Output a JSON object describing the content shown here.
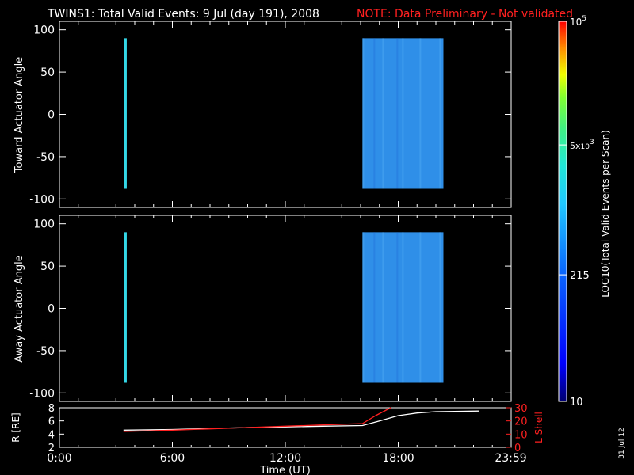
{
  "header": {
    "title": "TWINS1: Total Valid Events:  9 Jul (day 191), 2008",
    "note": "NOTE: Data Preliminary - Not validated",
    "note_color": "#ff2020"
  },
  "footer": {
    "xlabel": "Time (UT)",
    "date_stamp": "31 Jul 12"
  },
  "colorbar": {
    "title": "LOG10(Total Valid Events per Scan)",
    "tick_labels": [
      "10",
      "215",
      "5x10^3",
      "10^5"
    ],
    "tick_values": [
      10,
      215,
      5000,
      100000
    ],
    "range": [
      10,
      100000
    ],
    "scale": "log"
  },
  "chart_data": [
    {
      "type": "heatmap",
      "title": "TWINS1: Total Valid Events:  9 Jul (day 191), 2008",
      "ylabel": "Toward Actuator Angle",
      "xlabel": "",
      "xlim": [
        0,
        24
      ],
      "ylim": [
        -110,
        110
      ],
      "yticks": [
        100,
        50,
        0,
        -50,
        -100
      ],
      "xtick_labels": [
        "0:00",
        "6:00",
        "12:00",
        "18:00",
        "23:59"
      ],
      "xtick_values": [
        0,
        6,
        12,
        18,
        23.98
      ],
      "blocks": [
        {
          "t_start": 3.45,
          "t_end": 3.55,
          "angle_min": -88,
          "angle_max": 90,
          "level": 800,
          "color": "#33d6e6"
        },
        {
          "t_start": 16.1,
          "t_end": 20.4,
          "angle_min": -88,
          "angle_max": 90,
          "level": 220,
          "color": "#2f8fe8"
        }
      ]
    },
    {
      "type": "heatmap",
      "ylabel": "Away Actuator Angle",
      "xlabel": "",
      "xlim": [
        0,
        24
      ],
      "ylim": [
        -110,
        110
      ],
      "yticks": [
        100,
        50,
        0,
        -50,
        -100
      ],
      "xtick_labels": [
        "0:00",
        "6:00",
        "12:00",
        "18:00",
        "23:59"
      ],
      "xtick_values": [
        0,
        6,
        12,
        18,
        23.98
      ],
      "blocks": [
        {
          "t_start": 3.45,
          "t_end": 3.55,
          "angle_min": -88,
          "angle_max": 90,
          "level": 800,
          "color": "#33d6e6"
        },
        {
          "t_start": 16.1,
          "t_end": 20.4,
          "angle_min": -88,
          "angle_max": 90,
          "level": 220,
          "color": "#2f8fe8"
        }
      ]
    },
    {
      "type": "line",
      "xlabel": "Time (UT)",
      "xlim": [
        0,
        24
      ],
      "xtick_labels": [
        "0:00",
        "6:00",
        "12:00",
        "18:00",
        "23:59"
      ],
      "xtick_values": [
        0,
        6,
        12,
        18,
        23.98
      ],
      "left_axis": {
        "label": "R [RE]",
        "ylim": [
          2,
          8
        ],
        "ticks": [
          2,
          4,
          6,
          8
        ]
      },
      "right_axis": {
        "label": "L Shell",
        "ylim": [
          0,
          30
        ],
        "ticks": [
          0,
          10,
          20,
          30
        ],
        "color": "#ff2020"
      },
      "series": [
        {
          "axis": "left",
          "color": "#ffffff",
          "x": [
            3.4,
            6,
            8,
            10,
            12,
            14,
            16.1,
            17,
            18,
            19,
            20,
            21,
            22.3
          ],
          "y": [
            4.6,
            4.7,
            4.85,
            5.0,
            5.1,
            5.2,
            5.3,
            6.0,
            6.8,
            7.2,
            7.4,
            7.45,
            7.5
          ]
        },
        {
          "axis": "right",
          "color": "#ff2020",
          "x": [
            3.4,
            6,
            8,
            10,
            12,
            14,
            16.1,
            16.8,
            17.6
          ],
          "y": [
            12,
            13,
            14,
            15,
            16,
            17,
            18,
            24,
            30
          ]
        }
      ]
    }
  ]
}
